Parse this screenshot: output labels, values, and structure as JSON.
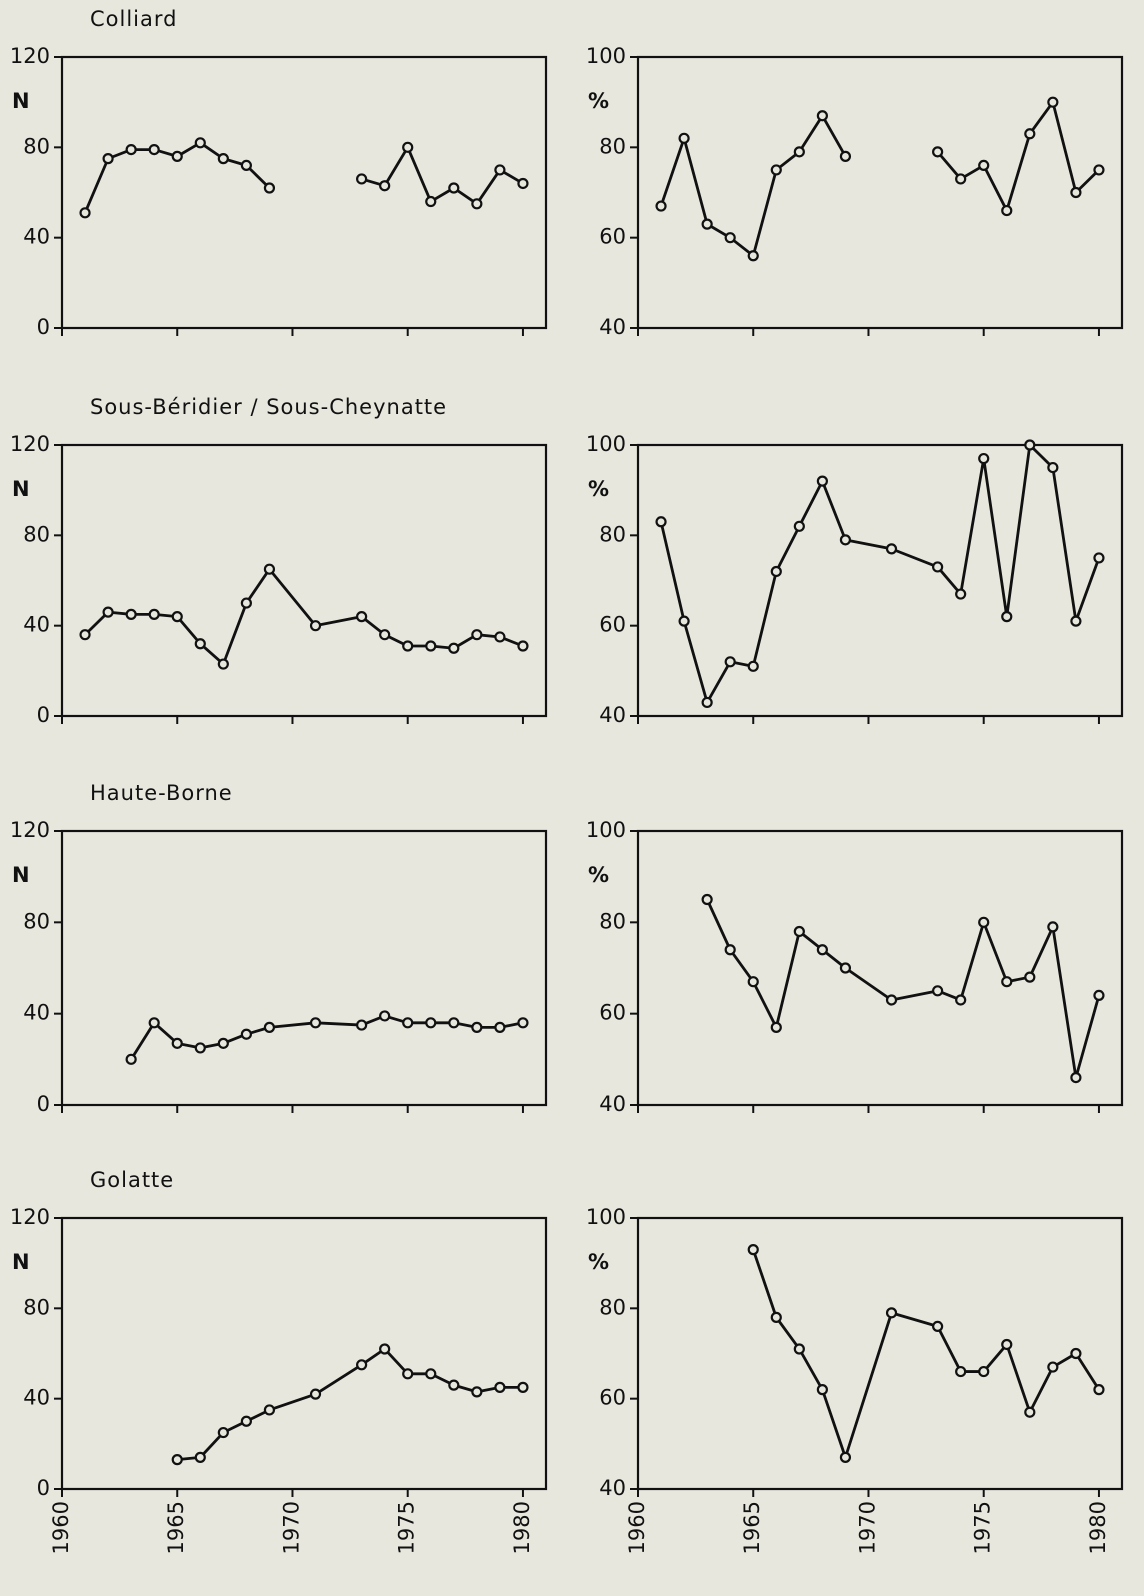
{
  "chart_data": [
    {
      "type": "line",
      "title": "Colliard",
      "ylabel": "N",
      "x": [
        1961,
        1962,
        1963,
        1964,
        1965,
        1966,
        1967,
        1968,
        1969,
        1970,
        1973,
        1974,
        1975,
        1976,
        1977,
        1978,
        1979,
        1980
      ],
      "values": [
        51,
        75,
        79,
        79,
        76,
        82,
        75,
        72,
        62,
        null,
        66,
        63,
        80,
        56,
        62,
        55,
        70,
        64
      ],
      "xlim": [
        1960,
        1981
      ],
      "ylim": [
        0,
        120
      ],
      "xticks": [
        1960,
        1965,
        1970,
        1975,
        1980
      ],
      "yticks": [
        0,
        40,
        80,
        120
      ],
      "show_xtick_labels": false,
      "color": "#111111"
    },
    {
      "type": "line",
      "ylabel": "%",
      "x": [
        1961,
        1962,
        1963,
        1964,
        1965,
        1966,
        1967,
        1968,
        1969,
        1970,
        1973,
        1974,
        1975,
        1976,
        1977,
        1978,
        1979,
        1980
      ],
      "values": [
        67,
        82,
        63,
        60,
        56,
        75,
        79,
        87,
        78,
        null,
        79,
        73,
        76,
        66,
        83,
        90,
        70,
        75
      ],
      "xlim": [
        1960,
        1981
      ],
      "ylim": [
        40,
        100
      ],
      "xticks": [
        1960,
        1965,
        1970,
        1975,
        1980
      ],
      "yticks": [
        40,
        60,
        80,
        100
      ],
      "show_xtick_labels": false,
      "color": "#111111"
    },
    {
      "type": "line",
      "title": "Sous-Béridier / Sous-Cheynatte",
      "ylabel": "N",
      "x": [
        1961,
        1962,
        1963,
        1964,
        1965,
        1966,
        1967,
        1968,
        1969,
        1971,
        1973,
        1974,
        1975,
        1976,
        1977,
        1978,
        1979,
        1980
      ],
      "values": [
        36,
        46,
        45,
        45,
        44,
        32,
        23,
        50,
        65,
        40,
        44,
        36,
        31,
        31,
        30,
        36,
        35,
        31
      ],
      "xlim": [
        1960,
        1981
      ],
      "ylim": [
        0,
        120
      ],
      "xticks": [
        1960,
        1965,
        1970,
        1975,
        1980
      ],
      "yticks": [
        0,
        40,
        80,
        120
      ],
      "show_xtick_labels": false,
      "color": "#111111"
    },
    {
      "type": "line",
      "ylabel": "%",
      "x": [
        1961,
        1962,
        1963,
        1964,
        1965,
        1966,
        1967,
        1968,
        1969,
        1971,
        1973,
        1974,
        1975,
        1976,
        1977,
        1978,
        1979,
        1980
      ],
      "values": [
        83,
        61,
        43,
        52,
        51,
        72,
        82,
        92,
        79,
        77,
        73,
        67,
        97,
        62,
        100,
        95,
        61,
        75
      ],
      "xlim": [
        1960,
        1981
      ],
      "ylim": [
        40,
        100
      ],
      "xticks": [
        1960,
        1965,
        1970,
        1975,
        1980
      ],
      "yticks": [
        40,
        60,
        80,
        100
      ],
      "show_xtick_labels": false,
      "color": "#111111"
    },
    {
      "type": "line",
      "title": "Haute-Borne",
      "ylabel": "N",
      "x": [
        1963,
        1964,
        1965,
        1966,
        1967,
        1968,
        1969,
        1971,
        1973,
        1974,
        1975,
        1976,
        1977,
        1978,
        1979,
        1980
      ],
      "values": [
        20,
        36,
        27,
        25,
        27,
        31,
        34,
        36,
        35,
        39,
        36,
        36,
        36,
        34,
        34,
        36
      ],
      "xlim": [
        1960,
        1981
      ],
      "ylim": [
        0,
        120
      ],
      "xticks": [
        1960,
        1965,
        1970,
        1975,
        1980
      ],
      "yticks": [
        0,
        40,
        80,
        120
      ],
      "show_xtick_labels": false,
      "color": "#111111"
    },
    {
      "type": "line",
      "ylabel": "%",
      "x": [
        1963,
        1964,
        1965,
        1966,
        1967,
        1968,
        1969,
        1971,
        1973,
        1974,
        1975,
        1976,
        1977,
        1978,
        1979,
        1980
      ],
      "values": [
        85,
        74,
        67,
        57,
        78,
        74,
        70,
        63,
        65,
        63,
        80,
        67,
        68,
        79,
        46,
        64
      ],
      "xlim": [
        1960,
        1981
      ],
      "ylim": [
        40,
        100
      ],
      "xticks": [
        1960,
        1965,
        1970,
        1975,
        1980
      ],
      "yticks": [
        40,
        60,
        80,
        100
      ],
      "show_xtick_labels": false,
      "color": "#111111"
    },
    {
      "type": "line",
      "title": "Golatte",
      "ylabel": "N",
      "x": [
        1965,
        1966,
        1967,
        1968,
        1969,
        1971,
        1973,
        1974,
        1975,
        1976,
        1977,
        1978,
        1979,
        1980
      ],
      "values": [
        13,
        14,
        25,
        30,
        35,
        42,
        55,
        62,
        51,
        51,
        46,
        43,
        45,
        45
      ],
      "xlim": [
        1960,
        1981
      ],
      "ylim": [
        0,
        120
      ],
      "xticks": [
        1960,
        1965,
        1970,
        1975,
        1980
      ],
      "yticks": [
        0,
        40,
        80,
        120
      ],
      "show_xtick_labels": true,
      "color": "#111111"
    },
    {
      "type": "line",
      "ylabel": "%",
      "x": [
        1965,
        1966,
        1967,
        1968,
        1969,
        1971,
        1973,
        1974,
        1975,
        1976,
        1977,
        1978,
        1979,
        1980
      ],
      "values": [
        93,
        78,
        71,
        62,
        47,
        79,
        76,
        66,
        66,
        72,
        57,
        67,
        70,
        62
      ],
      "xlim": [
        1960,
        1981
      ],
      "ylim": [
        40,
        100
      ],
      "xticks": [
        1960,
        1965,
        1970,
        1975,
        1980
      ],
      "yticks": [
        40,
        60,
        80,
        100
      ],
      "show_xtick_labels": true,
      "color": "#111111"
    }
  ]
}
